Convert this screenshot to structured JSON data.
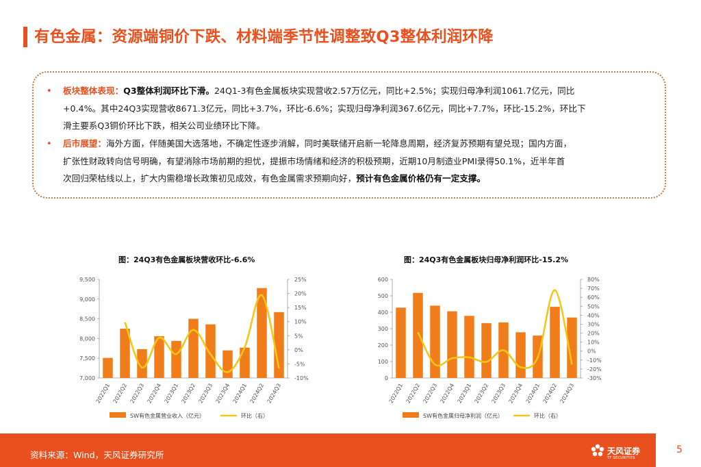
{
  "title": "有色金属：资源端铜价下跌、材料端季节性调整致Q3整体利润环降",
  "summary": {
    "b1_label": "板块整体表现：",
    "b1_head": "Q3整体利润环比下滑。",
    "b1_line1_tail": "24Q1-3有色金属板块实现营收2.57万亿元，同比+2.5%；实现归母净利润1061.7亿元，同比",
    "b1_line2": "+0.4%。其中24Q3实现营收8671.3亿元，同比+3.7%，环比-6.6%；实现归母净利润367.6亿元，同比+7.7%，环比-15.2%，环比下",
    "b1_line3": "滑主要系Q3铜价环比下跌，相关公司业绩环比下降。",
    "b2_label": "后市展望：",
    "b2_line1_tail": "海外方面，伴随美国大选落地，不确定性逐步消解，同时美联储开启新一轮降息周期，经济复苏预期有望兑现；国内方面，",
    "b2_line2": "扩张性财政转向信号明确，有望消除市场前期的担忧，提振市场情绪和经济的积极预期，近期10月制造业PMI录得50.1%，近半年首",
    "b2_line3_a": "次回归荣枯线以上，扩大内需稳增长政策初见成效，有色金属需求预期向好，",
    "b2_line3_b": "预计有色金属价格仍有一定支撑。"
  },
  "chart_data": [
    {
      "type": "bar",
      "title": "图：24Q3有色金属板块营收环比-6.6%",
      "categories": [
        "2022Q1",
        "2022Q2",
        "2022Q3",
        "2022Q4",
        "2023Q1",
        "2023Q2",
        "2023Q3",
        "2023Q4",
        "2024Q1",
        "2024Q2",
        "2024Q3"
      ],
      "series": [
        {
          "name": "SW有色金属营业收入（亿元）",
          "kind": "bar",
          "axis": "left",
          "color": "#f07d1a",
          "values": [
            7510,
            8250,
            7730,
            8060,
            7940,
            8500,
            8360,
            7700,
            7770,
            9280,
            8670
          ]
        },
        {
          "name": "环比（右）",
          "kind": "line",
          "axis": "right",
          "color": "#f5c518",
          "values": [
            null,
            9.8,
            -6.3,
            4.3,
            -1.5,
            7.1,
            -1.6,
            -7.9,
            0.9,
            19.4,
            -6.6
          ]
        }
      ],
      "yleft": {
        "min": 7000,
        "max": 9500,
        "step": 500,
        "ticks": [
          "7,000",
          "7,500",
          "8,000",
          "8,500",
          "9,000",
          "9,500"
        ]
      },
      "yright": {
        "min": -10,
        "max": 25,
        "step": 5,
        "ticks": [
          "-10%",
          "-5%",
          "0%",
          "5%",
          "10%",
          "15%",
          "20%",
          "25%"
        ]
      }
    },
    {
      "type": "bar",
      "title": "图：24Q3有色金属板块归母净利润环比-15.2%",
      "categories": [
        "2022Q1",
        "2022Q2",
        "2022Q3",
        "2022Q4",
        "2023Q1",
        "2023Q2",
        "2023Q3",
        "2023Q4",
        "2024Q1",
        "2024Q2",
        "2024Q3"
      ],
      "series": [
        {
          "name": "SW有色金属归母净利润（亿元）",
          "kind": "bar",
          "axis": "left",
          "color": "#f07d1a",
          "values": [
            428,
            518,
            440,
            406,
            378,
            334,
            338,
            278,
            258,
            433,
            368
          ]
        },
        {
          "name": "环比（右）",
          "kind": "line",
          "axis": "right",
          "color": "#f5c518",
          "values": [
            null,
            21,
            -15,
            -8,
            -7,
            -12,
            1,
            -18,
            -7,
            68,
            -15
          ]
        }
      ],
      "yleft": {
        "min": 0,
        "max": 600,
        "step": 100,
        "ticks": [
          "0",
          "100",
          "200",
          "300",
          "400",
          "500",
          "600"
        ]
      },
      "yright": {
        "min": -30,
        "max": 80,
        "step": 10,
        "ticks": [
          "-30%",
          "-20%",
          "-10%",
          "0%",
          "10%",
          "20%",
          "30%",
          "40%",
          "50%",
          "60%",
          "70%",
          "80%"
        ]
      }
    }
  ],
  "footer": {
    "source": "资料来源：Wind，天风证券研究所",
    "logo_name": "天风证券",
    "logo_sub": "TF SECURITIES",
    "page": "5"
  },
  "colors": {
    "accent": "#e8511f",
    "bar": "#f07d1a",
    "line": "#f5c518"
  }
}
